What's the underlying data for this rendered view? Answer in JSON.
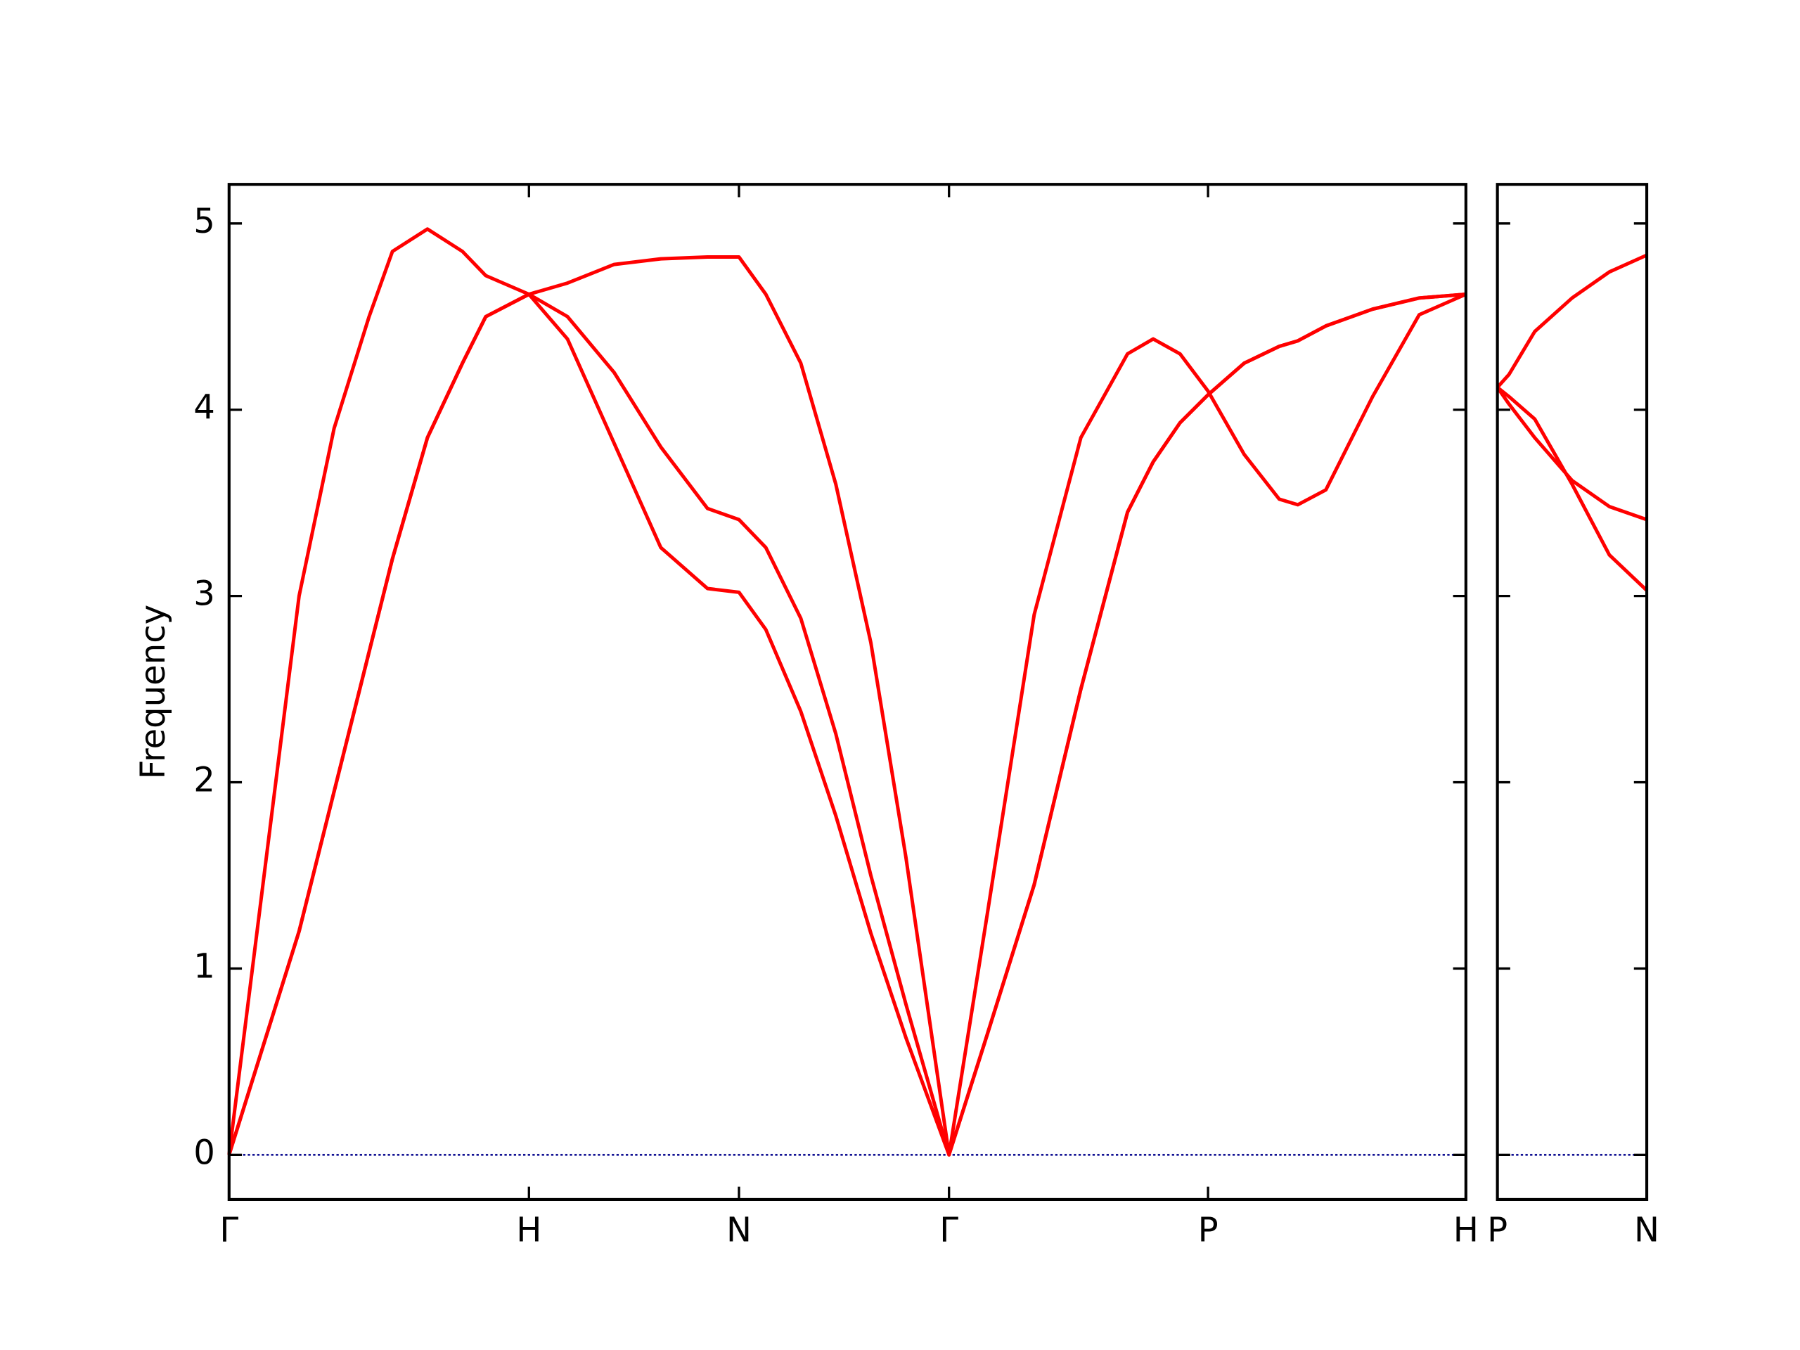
{
  "chart_data": [
    {
      "type": "line",
      "ylabel": "Frequency",
      "x": [
        0,
        0.3,
        0.6,
        0.9,
        1.2,
        1.4,
        1.7,
        2.0,
        2.2,
        2.57,
        2.9,
        3.3,
        3.7,
        4.1,
        4.37,
        4.6,
        4.9,
        5.2,
        5.5,
        5.8,
        6.17,
        6.5,
        6.9,
        7.3,
        7.7,
        7.92,
        8.15,
        8.39,
        8.7,
        9.0,
        9.16,
        9.4,
        9.8,
        10.2,
        10.6
      ],
      "series": [
        {
          "color": "#ff0000",
          "values": [
            0,
            0.6,
            1.2,
            1.95,
            2.7,
            3.2,
            3.85,
            4.25,
            4.5,
            4.62,
            4.38,
            3.82,
            3.26,
            3.04,
            3.02,
            2.82,
            2.38,
            1.82,
            1.19,
            0.63,
            0,
            0.65,
            1.45,
            2.5,
            3.45,
            3.72,
            3.93,
            4.08,
            4.25,
            4.34,
            4.37,
            4.45,
            4.54,
            4.6,
            4.62
          ]
        },
        {
          "color": "#ff0000",
          "values": [
            0,
            0.6,
            1.2,
            1.95,
            2.7,
            3.2,
            3.85,
            4.25,
            4.5,
            4.62,
            4.5,
            4.2,
            3.8,
            3.47,
            3.41,
            3.26,
            2.88,
            2.26,
            1.5,
            0.81,
            0,
            0.65,
            1.45,
            2.5,
            3.45,
            3.72,
            3.93,
            4.08,
            4.25,
            4.34,
            4.37,
            4.45,
            4.54,
            4.6,
            4.62
          ]
        },
        {
          "color": "#ff0000",
          "values": [
            0,
            1.5,
            3.0,
            3.9,
            4.5,
            4.85,
            4.97,
            4.85,
            4.72,
            4.62,
            4.68,
            4.78,
            4.81,
            4.82,
            4.82,
            4.62,
            4.25,
            3.6,
            2.75,
            1.6,
            0,
            1.3,
            2.9,
            3.85,
            4.3,
            4.38,
            4.3,
            4.1,
            3.76,
            3.52,
            3.49,
            3.57,
            4.07,
            4.51,
            4.62
          ]
        }
      ],
      "xlim": [
        0,
        10.6
      ],
      "ylim": [
        -0.24,
        5.21
      ],
      "xticks": [
        {
          "value": 0,
          "label": "Γ"
        },
        {
          "value": 2.57,
          "label": "H"
        },
        {
          "value": 4.37,
          "label": "N"
        },
        {
          "value": 6.17,
          "label": "Γ"
        },
        {
          "value": 8.39,
          "label": "P"
        },
        {
          "value": 10.6,
          "label": "H"
        }
      ],
      "yticks": [
        0,
        1,
        2,
        3,
        4,
        5
      ],
      "ytick_labels": true,
      "hlines": [
        {
          "y": 0,
          "color": "#00008b",
          "style": "dotted"
        }
      ]
    },
    {
      "type": "line",
      "x": [
        0,
        0.1,
        0.32,
        0.64,
        0.96,
        1.28
      ],
      "series": [
        {
          "color": "#ff0000",
          "values": [
            4.12,
            4.07,
            3.95,
            3.6,
            3.22,
            3.03
          ]
        },
        {
          "color": "#ff0000",
          "values": [
            4.12,
            4.03,
            3.85,
            3.62,
            3.48,
            3.41
          ]
        },
        {
          "color": "#ff0000",
          "values": [
            4.12,
            4.19,
            4.42,
            4.6,
            4.74,
            4.83
          ]
        }
      ],
      "xlim": [
        0,
        1.28
      ],
      "ylim": [
        -0.24,
        5.21
      ],
      "xticks": [
        {
          "value": 0,
          "label": "P"
        },
        {
          "value": 1.28,
          "label": "N"
        }
      ],
      "yticks": [
        0,
        1,
        2,
        3,
        4,
        5
      ],
      "ytick_labels": false,
      "hlines": [
        {
          "y": 0,
          "color": "#00008b",
          "style": "dotted"
        }
      ]
    }
  ]
}
